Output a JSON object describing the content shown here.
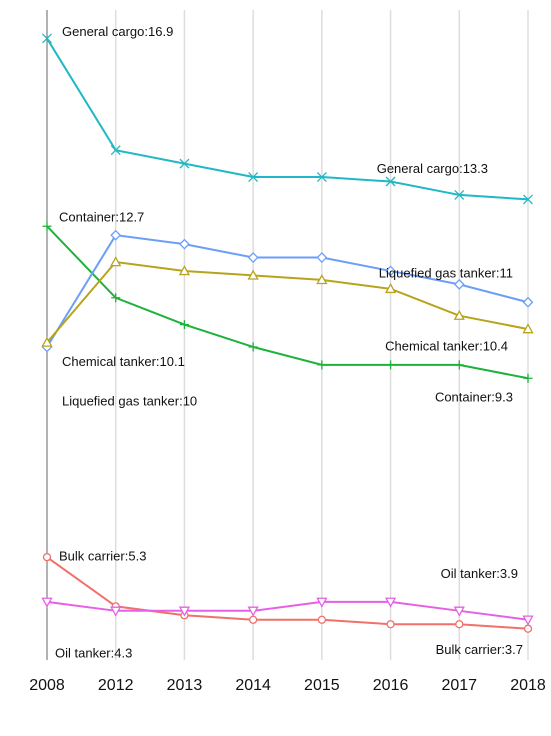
{
  "chart_data": {
    "type": "line",
    "categories": [
      "2008",
      "2012",
      "2013",
      "2014",
      "2015",
      "2016",
      "2017",
      "2018"
    ],
    "ylim": [
      3,
      17.2
    ],
    "series": [
      {
        "name": "General cargo",
        "color": "#1fb8c4",
        "marker": "x",
        "values": [
          16.9,
          14.4,
          14.1,
          13.8,
          13.8,
          13.7,
          13.4,
          13.3
        ]
      },
      {
        "name": "Container",
        "color": "#1db33a",
        "marker": "plus",
        "values": [
          12.7,
          11.1,
          10.5,
          10.0,
          9.6,
          9.6,
          9.6,
          9.3
        ]
      },
      {
        "name": "Liquefied gas tanker",
        "color": "#6c9ef8",
        "marker": "diamond",
        "values": [
          10,
          12.5,
          12.3,
          12.0,
          12.0,
          11.7,
          11.4,
          11
        ]
      },
      {
        "name": "Chemical tanker",
        "color": "#b8a31a",
        "marker": "triangle",
        "values": [
          10.1,
          11.9,
          11.7,
          11.6,
          11.5,
          11.3,
          10.7,
          10.4
        ]
      },
      {
        "name": "Bulk carrier",
        "color": "#f0706a",
        "marker": "circle",
        "values": [
          5.3,
          4.2,
          4.0,
          3.9,
          3.9,
          3.8,
          3.8,
          3.7
        ]
      },
      {
        "name": "Oil tanker",
        "color": "#e660e6",
        "marker": "triangle-down",
        "values": [
          4.3,
          4.1,
          4.1,
          4.1,
          4.3,
          4.3,
          4.1,
          3.9
        ]
      }
    ],
    "annotations": [
      "General cargo:16.9",
      "General cargo:13.3",
      "Container:12.7",
      "Liquefied gas tanker:11",
      "Chemical tanker:10.4",
      "Chemical tanker:10.1",
      "Liquefied gas tanker:10",
      "Container:9.3",
      "Bulk carrier:5.3",
      "Oil tanker:3.9",
      "Oil tanker:4.3",
      "Bulk carrier:3.7"
    ]
  }
}
